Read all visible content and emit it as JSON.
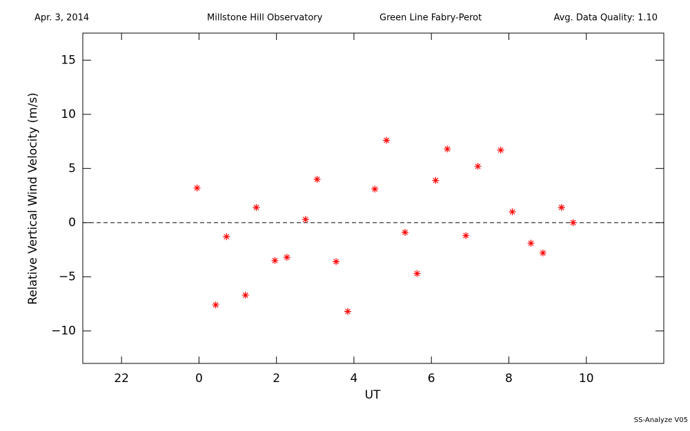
{
  "header": {
    "date": "Apr. 3, 2014",
    "site": "Millstone Hill Observatory",
    "instrument": "Green Line Fabry-Perot",
    "quality": "Avg. Data Quality: 1.10"
  },
  "footer": "SS-Analyze V05",
  "chart_data": {
    "type": "scatter",
    "xlabel": "UT",
    "ylabel": "Relative Vertical Wind Velocity (m/s)",
    "xlim": [
      -3,
      12
    ],
    "ylim": [
      -13,
      17.5
    ],
    "xticks": [
      {
        "value": -2,
        "label": "22"
      },
      0,
      2,
      4,
      6,
      8,
      10
    ],
    "yticks": [
      {
        "value": -10,
        "label": "−10"
      },
      {
        "value": -5,
        "label": "−5"
      },
      0,
      5,
      10,
      15
    ],
    "hline": 0,
    "series": [
      {
        "color": "#ff0000",
        "x": [
          -0.05,
          0.43,
          0.71,
          1.2,
          1.48,
          1.96,
          2.27,
          2.75,
          3.05,
          3.54,
          3.84,
          4.54,
          4.84,
          5.32,
          5.63,
          6.11,
          6.41,
          6.89,
          7.2,
          7.79,
          8.09,
          8.57,
          8.88,
          9.36,
          9.66
        ],
        "values": [
          3.2,
          -7.6,
          -1.3,
          -6.7,
          1.4,
          -3.5,
          -3.2,
          0.3,
          4.0,
          -3.6,
          -8.2,
          3.1,
          7.6,
          -0.9,
          -4.7,
          3.9,
          6.8,
          -1.2,
          5.2,
          6.7,
          1.0,
          -1.9,
          -2.8,
          1.4,
          0.0
        ]
      }
    ]
  }
}
